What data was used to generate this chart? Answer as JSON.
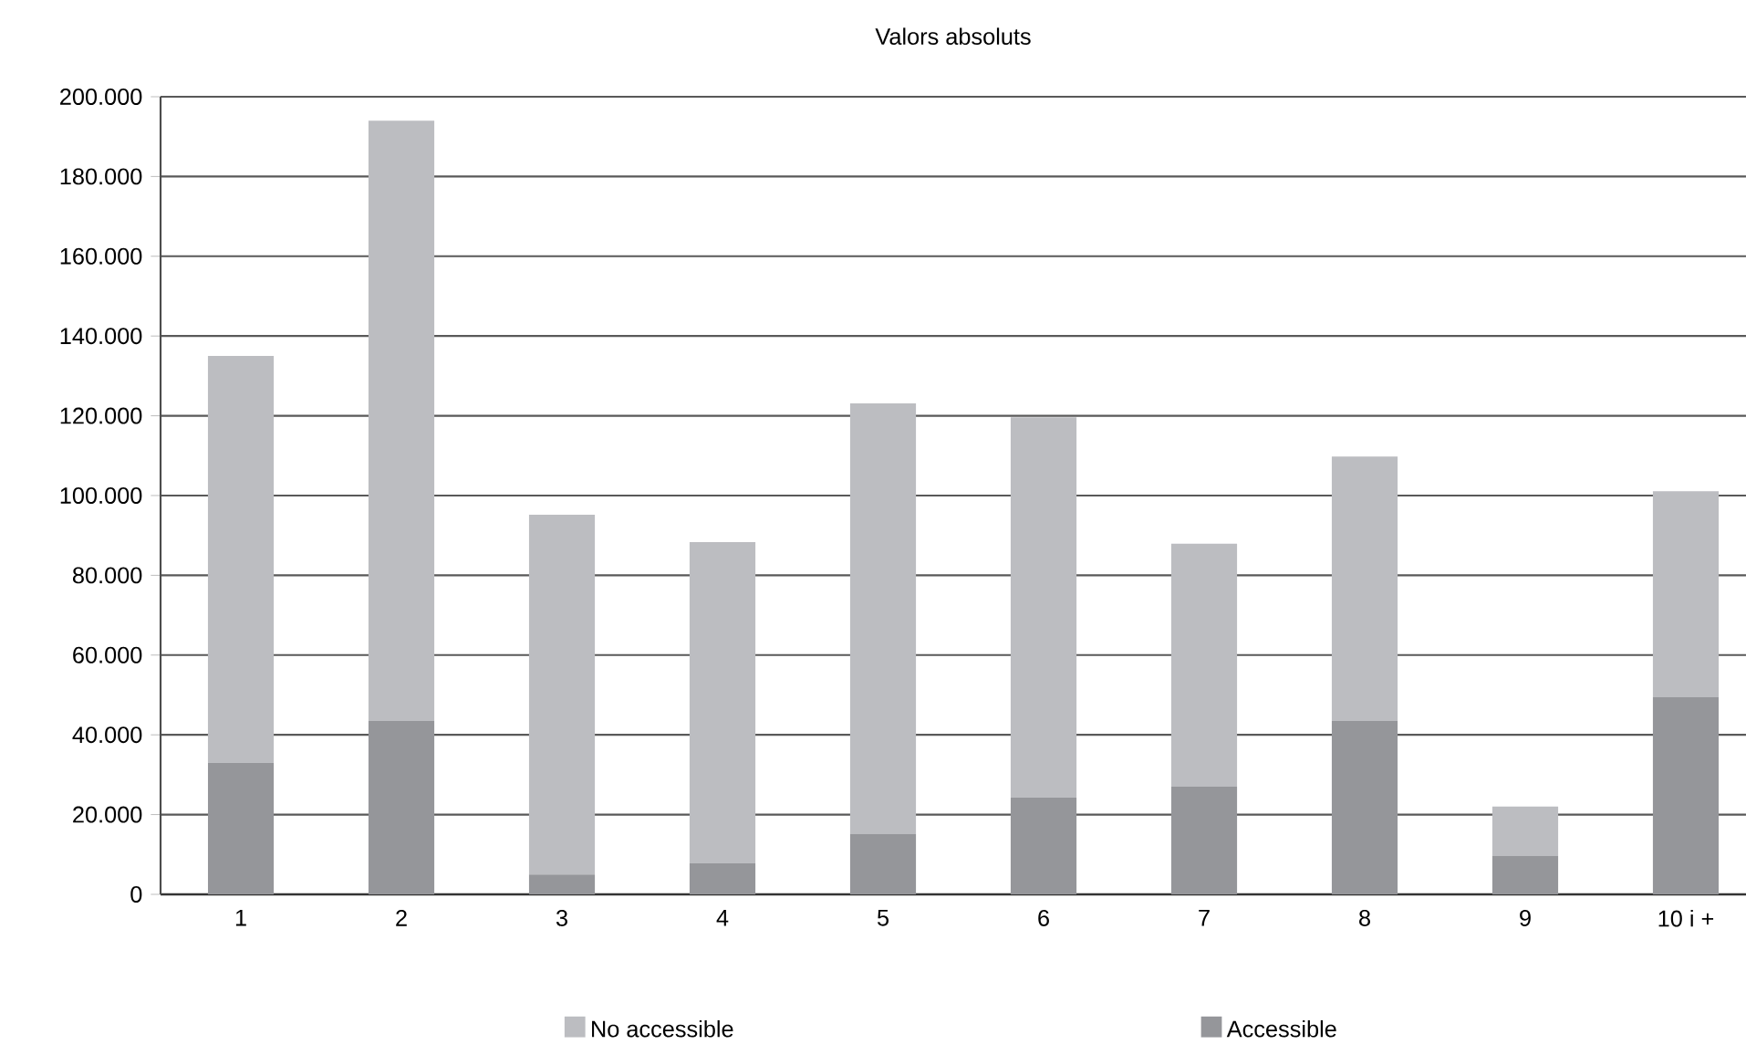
{
  "chart_data": {
    "type": "bar",
    "title": "Valors absoluts",
    "categories": [
      "1",
      "2",
      "3",
      "4",
      "5",
      "6",
      "7",
      "8",
      "9",
      "10 i +"
    ],
    "stacked": true,
    "series": [
      {
        "name": "Accessible",
        "color": "#95969a",
        "values": [
          33000,
          43500,
          5000,
          7800,
          15100,
          24300,
          27000,
          43500,
          9600,
          49400
        ]
      },
      {
        "name": "No accessible",
        "color": "#bcbdc1",
        "values": [
          102000,
          150500,
          90200,
          80500,
          108000,
          95300,
          60900,
          66300,
          12400,
          51700
        ]
      }
    ],
    "ylim": [
      0,
      200000
    ],
    "yticks": [
      0,
      {
        "value": 20000,
        "label": "20.000"
      },
      {
        "value": 40000,
        "label": "40.000"
      },
      {
        "value": 60000,
        "label": "60.000"
      },
      {
        "value": 80000,
        "label": "80.000"
      },
      {
        "value": 100000,
        "label": "100.000"
      },
      {
        "value": 120000,
        "label": "120.000"
      },
      {
        "value": 140000,
        "label": "140.000"
      },
      {
        "value": 160000,
        "label": "160.000"
      },
      {
        "value": 180000,
        "label": "180.000"
      },
      {
        "value": 200000,
        "label": "200.000"
      }
    ],
    "grid": "y",
    "legend": "bottom"
  }
}
